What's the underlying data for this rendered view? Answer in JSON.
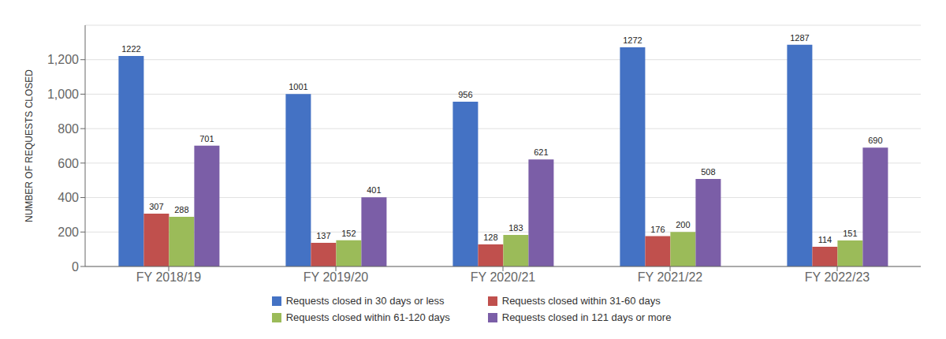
{
  "chart_data": {
    "type": "bar",
    "categories": [
      "FY 2018/19",
      "FY 2019/20",
      "FY 2020/21",
      "FY 2021/22",
      "FY 2022/23"
    ],
    "series": [
      {
        "name": "Requests closed in 30 days or less",
        "color": "#4472C4",
        "values": [
          1222,
          1001,
          956,
          1272,
          1287
        ]
      },
      {
        "name": "Requests closed within 31-60 days",
        "color": "#C0504D",
        "values": [
          307,
          137,
          128,
          176,
          114
        ]
      },
      {
        "name": "Requests closed within 61-120 days",
        "color": "#9BBB59",
        "values": [
          288,
          152,
          183,
          200,
          151
        ]
      },
      {
        "name": "Requests closed in 121 days or more",
        "color": "#7B5EA7",
        "values": [
          701,
          401,
          621,
          508,
          690
        ]
      }
    ],
    "ylabel": "NUMBER OF REQUESTS CLOSED",
    "ylim": [
      0,
      1400
    ],
    "yticks": [
      0,
      200,
      400,
      600,
      800,
      {
        "value": 1000,
        "label": "1,000"
      },
      {
        "value": 1200,
        "label": "1,200"
      }
    ],
    "grid": true,
    "data_labels": true,
    "legend": "bottom"
  }
}
